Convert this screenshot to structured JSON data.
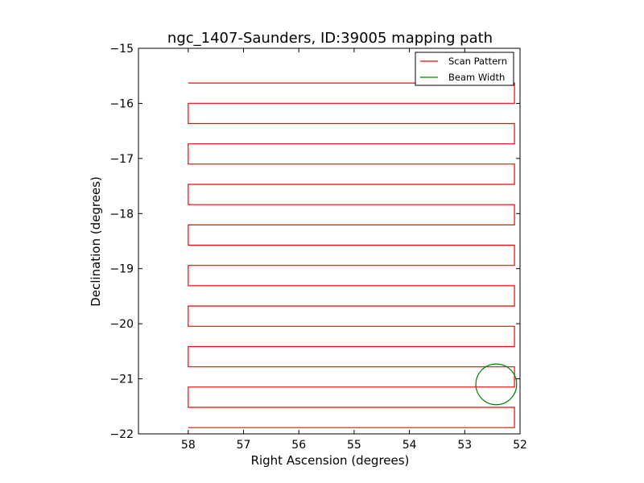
{
  "chart_data": {
    "type": "line",
    "title": "ngc_1407-Saunders, ID:39005 mapping path",
    "xlabel": "Right Ascension (degrees)",
    "ylabel": "Declination (degrees)",
    "xlim": [
      58.9,
      52.0
    ],
    "ylim": [
      -22,
      -15
    ],
    "xticks": [
      58,
      57,
      56,
      55,
      54,
      53,
      52
    ],
    "yticks": [
      -15,
      -16,
      -17,
      -18,
      -19,
      -20,
      -21,
      -22
    ],
    "grid": false,
    "legend_position": "top-right",
    "colors": {
      "scan": "#ff0000",
      "beam": "#008000"
    },
    "series": [
      {
        "name": "Scan Pattern",
        "kind": "raster",
        "x_start": 58.0,
        "x_end": 52.1,
        "y_start": -15.63,
        "y_step": -0.368,
        "rows": 18
      },
      {
        "name": "Beam Width",
        "kind": "circle",
        "center": [
          52.43,
          -21.1
        ],
        "radius_deg": 0.37
      }
    ]
  }
}
